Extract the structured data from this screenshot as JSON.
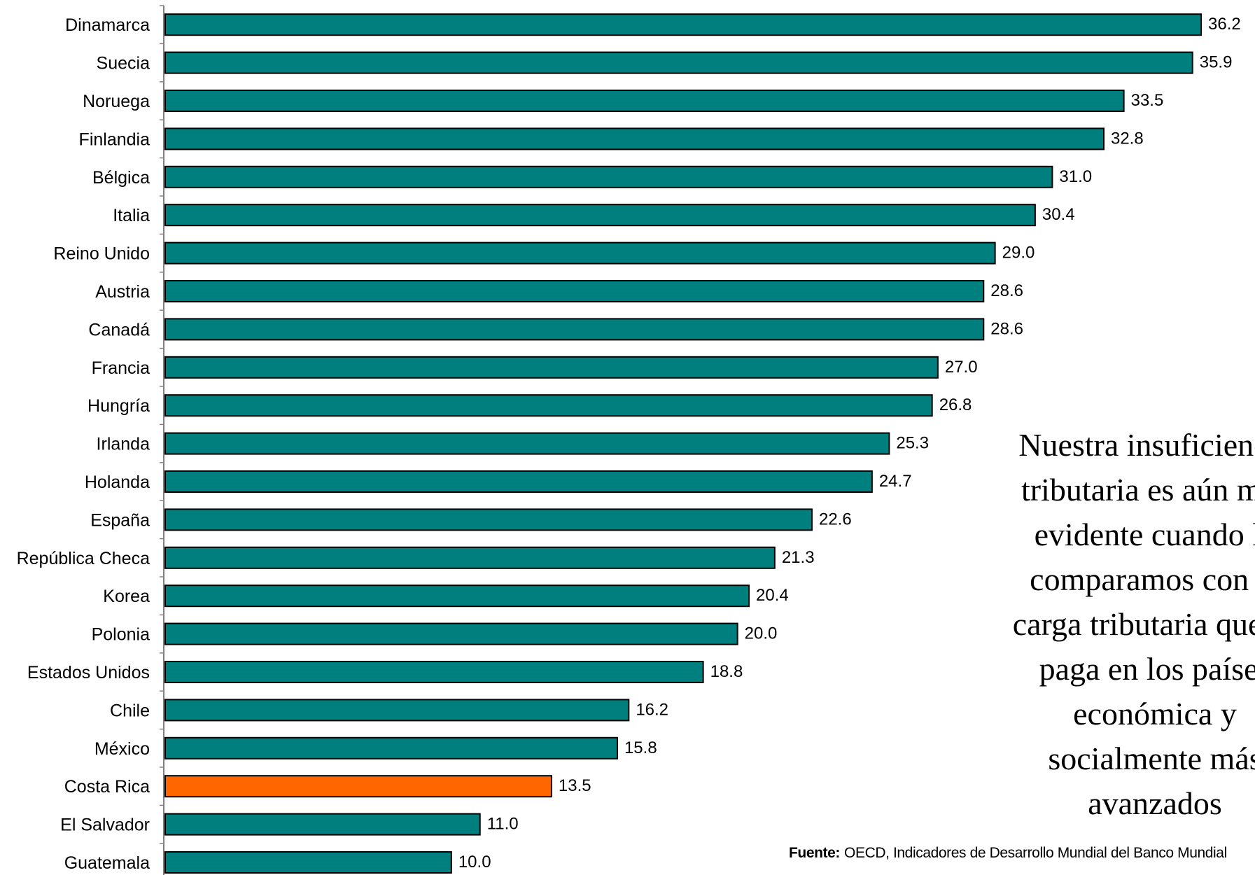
{
  "chart_data": {
    "type": "bar",
    "orientation": "horizontal",
    "categories": [
      "Dinamarca",
      "Suecia",
      "Noruega",
      "Finlandia",
      "Bélgica",
      "Italia",
      "Reino Unido",
      "Austria",
      "Canadá",
      "Francia",
      "Hungría",
      "Irlanda",
      "Holanda",
      "España",
      "República Checa",
      "Korea",
      "Polonia",
      "Estados Unidos",
      "Chile",
      "México",
      "Costa Rica",
      "El Salvador",
      "Guatemala"
    ],
    "values": [
      36.2,
      35.9,
      33.5,
      32.8,
      31.0,
      30.4,
      29.0,
      28.6,
      28.6,
      27.0,
      26.8,
      25.3,
      24.7,
      22.6,
      21.3,
      20.4,
      20.0,
      18.8,
      16.2,
      15.8,
      13.5,
      11.0,
      10.0
    ],
    "value_labels": [
      "36.2",
      "35.9",
      "33.5",
      "32.8",
      "31.0",
      "30.4",
      "29.0",
      "28.6",
      "28.6",
      "27.0",
      "26.8",
      "25.3",
      "24.7",
      "22.6",
      "21.3",
      "20.4",
      "20.0",
      "18.8",
      "16.2",
      "15.8",
      "13.5",
      "11.0",
      "10.0"
    ],
    "highlight_category": "Costa Rica",
    "colors": {
      "bar": "#007F7F",
      "highlight": "#FF6600",
      "bar_outline": "#000000",
      "axis": "#808080"
    },
    "xlim": [
      0,
      36.2
    ],
    "grid": false,
    "legend": "none"
  },
  "annotation": "Nuestra insuficiencia\ntributaria es aún más\nevidente cuando la\ncomparamos con la\ncarga tributaria que se\npaga en los países\neconómica y\nsocialmente más\navanzados",
  "source": {
    "label": "Fuente:",
    "text": "OECD, Indicadores de Desarrollo Mundial del Banco Mundial"
  }
}
